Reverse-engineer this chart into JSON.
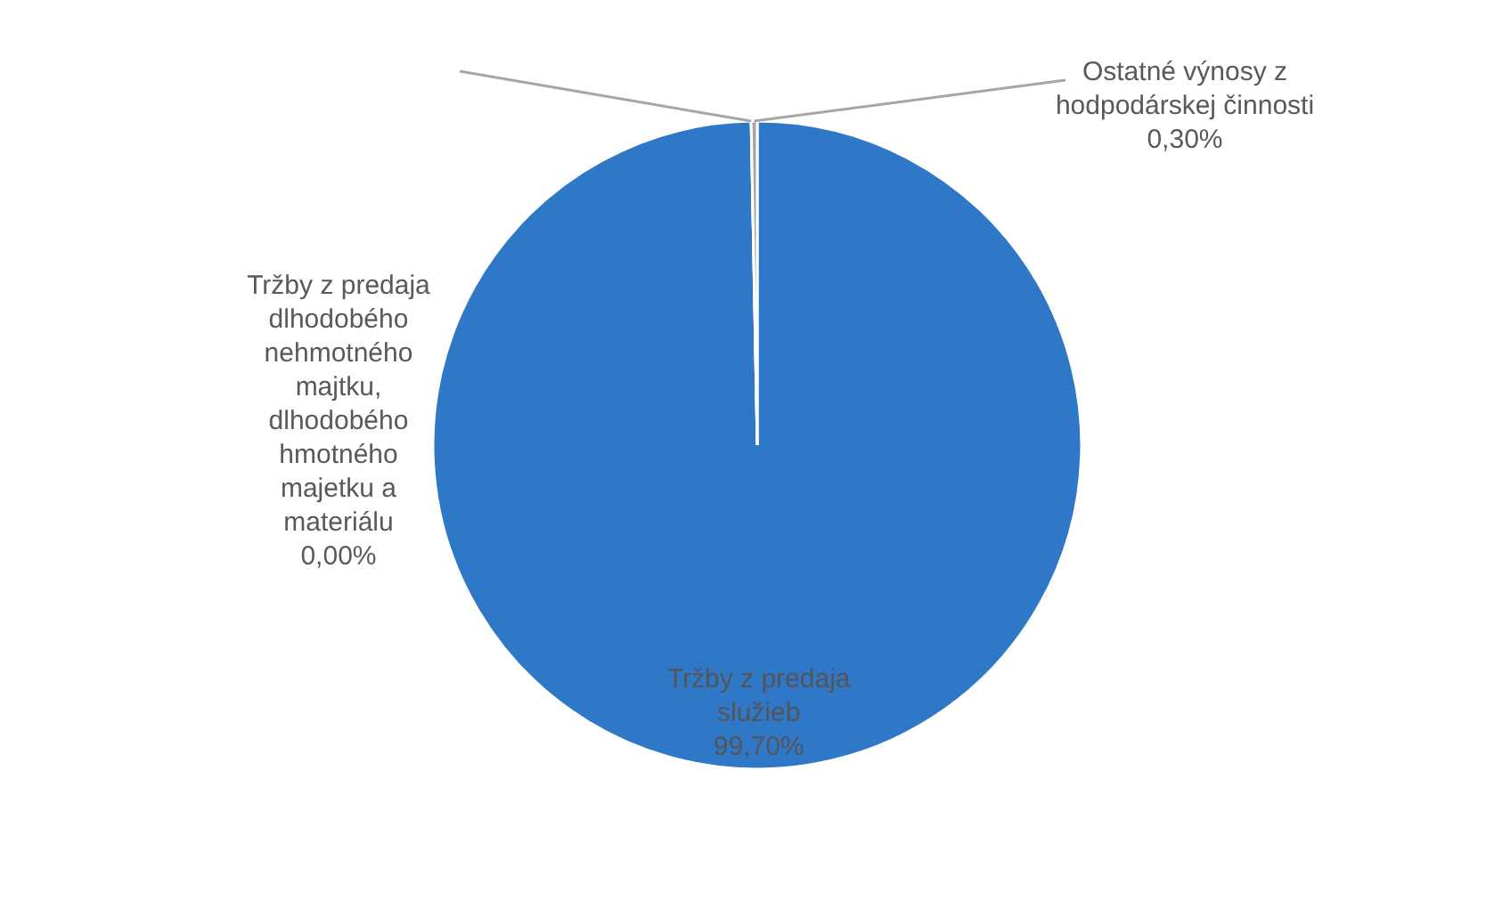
{
  "chart_data": {
    "type": "pie",
    "categories": [
      "Tržby z predaja služieb",
      "Tržby z predaja dlhodobého nehmotného majtku, dlhodobého hmotného majetku a materiálu",
      "Ostatné výnosy z hodpodárskej činnosti"
    ],
    "values": [
      99.7,
      0,
      0.3
    ],
    "colors": [
      "#2f78c8",
      "#7f7f7f",
      "#a5a5a5"
    ],
    "value_labels": [
      "99,70%",
      "0,00%",
      "0,30%"
    ],
    "legend": false
  }
}
